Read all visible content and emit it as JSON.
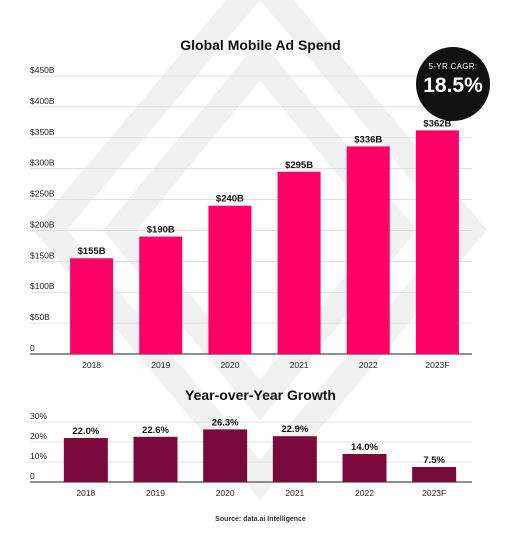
{
  "charts": {
    "spend_title": "Global Mobile Ad Spend",
    "growth_title": "Year-over-Year Growth",
    "source": "Source: data.ai Intelligence",
    "badge": {
      "label": "5-YR CAGR:",
      "value": "18.5%"
    }
  },
  "colors": {
    "spend_bar": "#ff0066",
    "growth_bar": "#7a0a3c",
    "badge_bg": "#111111",
    "background_mark": "#f2f2f2"
  },
  "chart_data": [
    {
      "type": "bar",
      "title": "Global Mobile Ad Spend",
      "categories": [
        "2018",
        "2019",
        "2020",
        "2021",
        "2022",
        "2023F"
      ],
      "values": [
        155,
        190,
        240,
        295,
        336,
        362
      ],
      "data_labels": [
        "$155B",
        "$190B",
        "$240B",
        "$295B",
        "$336B",
        "$362B"
      ],
      "y_ticks": [
        "0",
        "$50B",
        "$100B",
        "$150B",
        "$200B",
        "$250B",
        "$300B",
        "$350B",
        "$400B",
        "$450B"
      ],
      "ylim": [
        0,
        450
      ],
      "grid": true
    },
    {
      "type": "bar",
      "title": "Year-over-Year Growth",
      "categories": [
        "2018",
        "2019",
        "2020",
        "2021",
        "2022",
        "2023F"
      ],
      "values": [
        22.0,
        22.6,
        26.3,
        22.9,
        14.0,
        7.5
      ],
      "data_labels": [
        "22.0%",
        "22.6%",
        "26.3%",
        "22.9%",
        "14.0%",
        "7.5%"
      ],
      "y_ticks": [
        "0",
        "10%",
        "20%",
        "30%"
      ],
      "ylim": [
        0,
        30
      ],
      "grid": true
    }
  ]
}
